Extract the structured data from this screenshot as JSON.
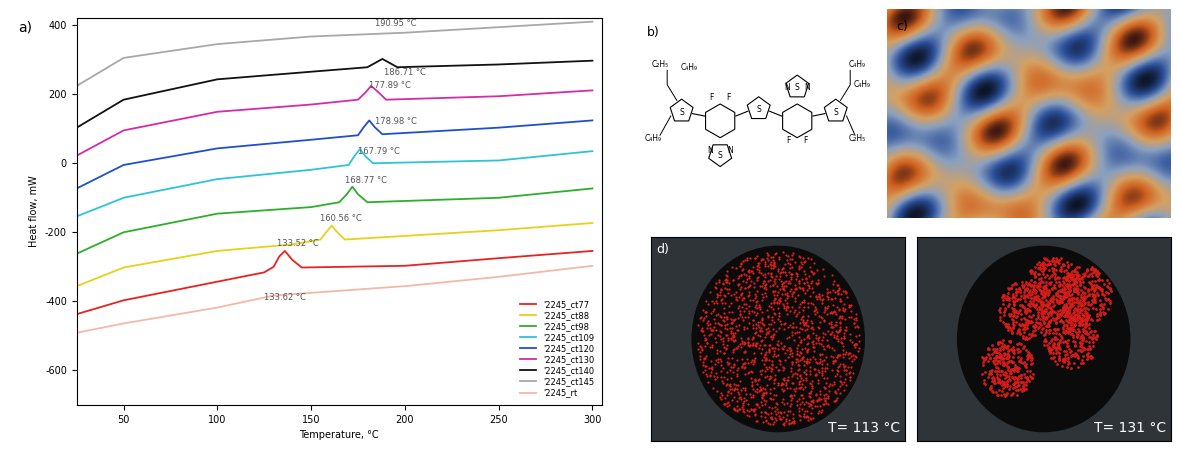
{
  "chart_data": {
    "type": "line",
    "x_label": "Temperature, °C",
    "y_label": "Heat flow, mW",
    "xlim": [
      25,
      305
    ],
    "xticks": [
      50,
      100,
      150,
      200,
      250,
      300
    ],
    "ylim": [
      -700,
      420
    ],
    "yticks": [
      -600,
      -400,
      -200,
      0,
      200,
      400
    ],
    "legend": "lower right",
    "series": [
      {
        "name": "'2245_ct77",
        "color": "#e8231f",
        "x": [
          25,
          50,
          100,
          125,
          130,
          133,
          136,
          140,
          145,
          200,
          250,
          300
        ],
        "values": [
          -437,
          -397,
          -343,
          -316,
          -300,
          -270,
          -254,
          -280,
          -302,
          -297,
          -275,
          -254
        ]
      },
      {
        "name": "'2245_ct88",
        "color": "#e6d21a",
        "x": [
          25,
          50,
          100,
          140,
          155,
          158,
          161,
          164,
          168,
          250,
          300
        ],
        "values": [
          -356,
          -302,
          -254,
          -235,
          -221,
          -200,
          -181,
          -200,
          -221,
          -194,
          -173
        ]
      },
      {
        "name": "'2245_ct98",
        "color": "#2fae2a",
        "x": [
          25,
          50,
          100,
          150,
          165,
          169,
          172,
          175,
          180,
          250,
          300
        ],
        "values": [
          -262,
          -200,
          -146,
          -127,
          -113,
          -90,
          -68,
          -90,
          -113,
          -100,
          -73
        ]
      },
      {
        "name": "'2245_ct109",
        "color": "#2ec4d6",
        "x": [
          25,
          50,
          100,
          150,
          170,
          173,
          176,
          179,
          183,
          250,
          300
        ],
        "values": [
          -154,
          -100,
          -46,
          -19,
          -5,
          20,
          41,
          20,
          0,
          8,
          35
        ]
      },
      {
        "name": "'2245_ct120",
        "color": "#1f4fd1",
        "x": [
          25,
          50,
          100,
          150,
          175,
          178,
          181,
          184,
          188,
          250,
          300
        ],
        "values": [
          -73,
          -5,
          43,
          68,
          81,
          104,
          124,
          104,
          84,
          103,
          124
        ]
      },
      {
        "name": "'2245_ct130",
        "color": "#d62aa8",
        "x": [
          25,
          50,
          100,
          150,
          175,
          179,
          182,
          186,
          190,
          250,
          300
        ],
        "values": [
          22,
          95,
          149,
          170,
          184,
          205,
          224,
          205,
          184,
          194,
          211
        ]
      },
      {
        "name": "'2245_ct140",
        "color": "#111111",
        "x": [
          25,
          50,
          100,
          150,
          180,
          184,
          188,
          192,
          196,
          250,
          300
        ],
        "values": [
          103,
          184,
          243,
          265,
          278,
          290,
          302,
          290,
          278,
          286,
          297
        ]
      },
      {
        "name": "'2245_ct145",
        "color": "#a8a8a8",
        "x": [
          25,
          50,
          100,
          150,
          200,
          250,
          300
        ],
        "values": [
          224,
          305,
          345,
          367,
          378,
          394,
          410
        ]
      },
      {
        "name": "'2245_rt",
        "color": "#f4b8a8",
        "x": [
          25,
          50,
          100,
          130,
          200,
          250,
          300
        ],
        "values": [
          -491,
          -464,
          -418,
          -383,
          -356,
          -329,
          -297
        ]
      }
    ],
    "annotations": [
      {
        "text": "190.95 °C",
        "x": 195,
        "y": 392
      },
      {
        "text": "186.71 °C",
        "x": 200,
        "y": 250
      },
      {
        "text": "177.89 °C",
        "x": 192,
        "y": 212
      },
      {
        "text": "178.98 °C",
        "x": 195,
        "y": 108
      },
      {
        "text": "167.79 °C",
        "x": 186,
        "y": 22
      },
      {
        "text": "168.77 °C",
        "x": 179,
        "y": -62
      },
      {
        "text": "160.56 °C",
        "x": 166,
        "y": -172
      },
      {
        "text": "133.52 °C",
        "x": 143,
        "y": -246
      },
      {
        "text": "133.62 °C",
        "x": 136,
        "y": -402
      }
    ]
  },
  "panel_labels": [
    "a)",
    "b)",
    "c)",
    "d)"
  ],
  "structure": {
    "left_chains": [
      "C₂H₅",
      "C₄H₉",
      "C₄H₉"
    ],
    "right_chains": [
      "C₄H₉",
      "C₄H₉",
      "C₂H₅"
    ],
    "fluorine": "F",
    "sulfur": "S",
    "nitrogen": "N"
  },
  "micrograph_temperatures": [
    "T= 113 °C",
    "T= 131 °C"
  ]
}
